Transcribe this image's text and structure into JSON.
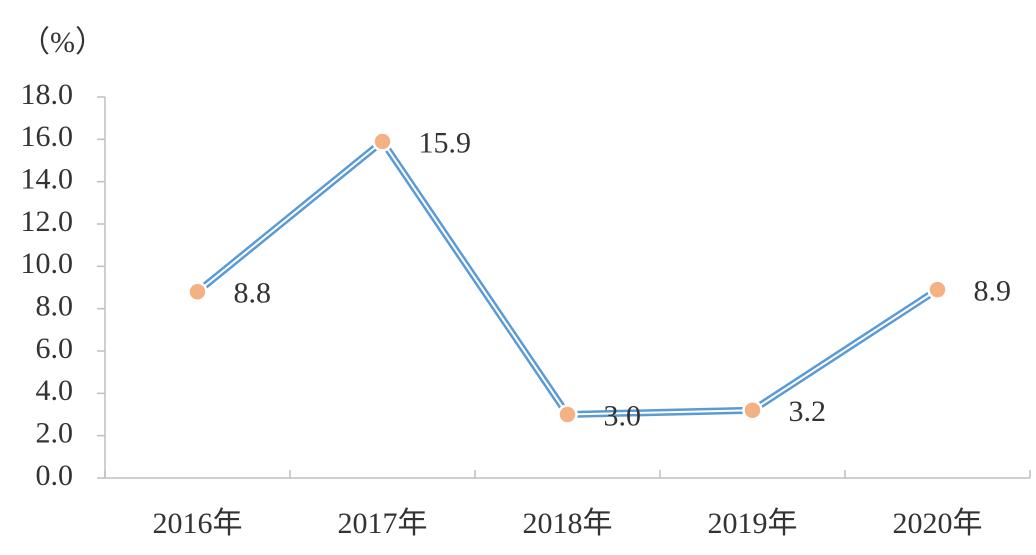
{
  "chart_data": {
    "type": "line",
    "y_label": "（%）",
    "categories": [
      "2016年",
      "2017年",
      "2018年",
      "2019年",
      "2020年"
    ],
    "series": [
      {
        "color": "#5b9bd5",
        "marker_color": "#f4b183",
        "values": [
          8.8,
          15.9,
          3.0,
          3.2,
          8.9
        ],
        "value_labels": [
          "8.8",
          "15.9",
          "3.0",
          "3.2",
          "8.9"
        ]
      }
    ],
    "ylim": [
      0,
      18
    ],
    "yticks": [
      {
        "value": 0,
        "label": "0.0"
      },
      {
        "value": 2,
        "label": "2.0"
      },
      {
        "value": 4,
        "label": "4.0"
      },
      {
        "value": 6,
        "label": "6.0"
      },
      {
        "value": 8,
        "label": "8.0"
      },
      {
        "value": 10,
        "label": "10.0"
      },
      {
        "value": 12,
        "label": "12.0"
      },
      {
        "value": 14,
        "label": "14.0"
      },
      {
        "value": 16,
        "label": "16.0"
      },
      {
        "value": 18,
        "label": "18.0"
      }
    ]
  }
}
